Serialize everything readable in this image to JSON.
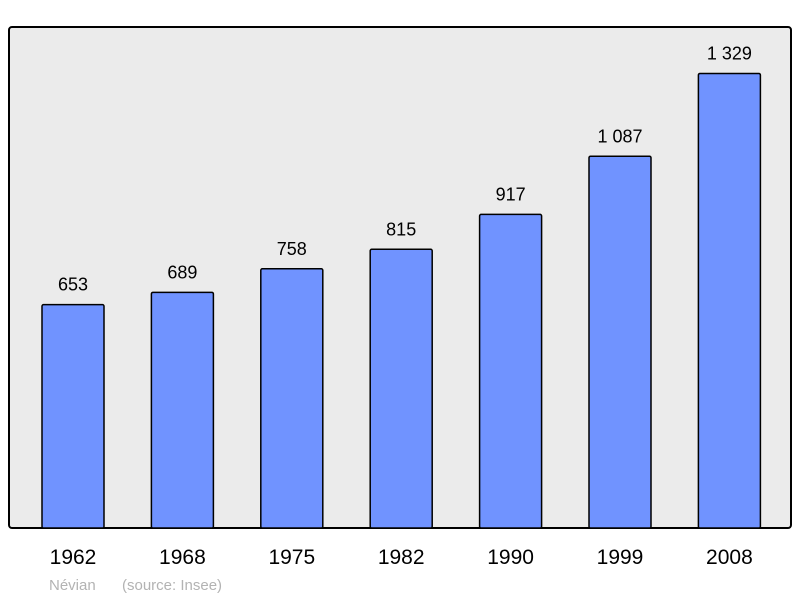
{
  "chart_data": {
    "type": "bar",
    "categories": [
      "1962",
      "1968",
      "1975",
      "1982",
      "1990",
      "1999",
      "2008"
    ],
    "values": [
      653,
      689,
      758,
      815,
      917,
      1087,
      1329
    ],
    "value_labels": [
      "653",
      "689",
      "758",
      "815",
      "917",
      "1 087",
      "1 329"
    ],
    "title": "",
    "xlabel": "",
    "ylabel": "",
    "ylim": [
      0,
      1465
    ],
    "grid": false,
    "legend": "none",
    "colors": {
      "bar": "#7093ff",
      "plot_background": "#ebebeb",
      "border": "#000000"
    }
  },
  "footer": {
    "place": "Névian",
    "source": "(source: Insee)"
  }
}
